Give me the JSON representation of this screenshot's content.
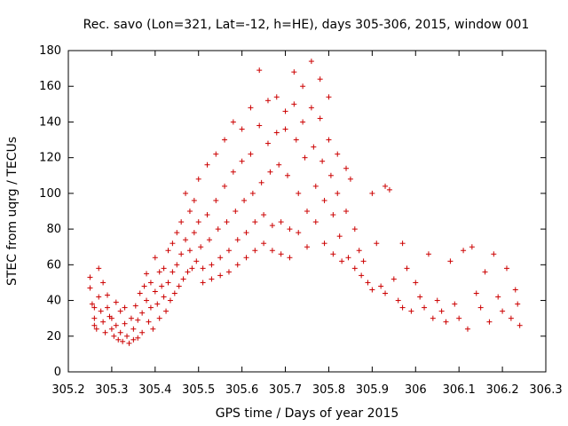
{
  "chart_data": {
    "type": "scatter",
    "title": "Rec. savo (Lon=321, Lat=-12, h=HE), days 305-306, 2015, window 001",
    "xlabel": "GPS time / Days of year 2015",
    "ylabel": "STEC from uqrg / TECUs",
    "xlim": [
      305.2,
      306.3
    ],
    "ylim": [
      0,
      180
    ],
    "xticks": [
      305.2,
      305.3,
      305.4,
      305.5,
      305.6,
      305.7,
      305.8,
      305.9,
      306,
      306.1,
      306.2,
      306.3
    ],
    "xtick_labels": [
      "305.2",
      "305.3",
      "305.4",
      "305.5",
      "305.6",
      "305.7",
      "305.8",
      "305.9",
      "306",
      "306.1",
      "306.2",
      "306.3"
    ],
    "yticks": [
      0,
      20,
      40,
      60,
      80,
      100,
      120,
      140,
      160,
      180
    ],
    "ytick_labels": [
      "0",
      "20",
      "40",
      "60",
      "80",
      "100",
      "120",
      "140",
      "160",
      "180"
    ],
    "grid": false,
    "marker": "+",
    "color": "#cc0000",
    "series": [
      {
        "name": "STEC",
        "points": [
          [
            305.25,
            53
          ],
          [
            305.25,
            47
          ],
          [
            305.255,
            38
          ],
          [
            305.26,
            36
          ],
          [
            305.26,
            30
          ],
          [
            305.26,
            26
          ],
          [
            305.265,
            24
          ],
          [
            305.27,
            58
          ],
          [
            305.27,
            42
          ],
          [
            305.275,
            34
          ],
          [
            305.28,
            50
          ],
          [
            305.28,
            28
          ],
          [
            305.285,
            22
          ],
          [
            305.29,
            43
          ],
          [
            305.29,
            36
          ],
          [
            305.295,
            31
          ],
          [
            305.3,
            30
          ],
          [
            305.3,
            24
          ],
          [
            305.305,
            20
          ],
          [
            305.31,
            39
          ],
          [
            305.31,
            26
          ],
          [
            305.315,
            18
          ],
          [
            305.32,
            34
          ],
          [
            305.32,
            22
          ],
          [
            305.325,
            17
          ],
          [
            305.33,
            36
          ],
          [
            305.33,
            27
          ],
          [
            305.335,
            20
          ],
          [
            305.34,
            16
          ],
          [
            305.345,
            30
          ],
          [
            305.35,
            24
          ],
          [
            305.35,
            18
          ],
          [
            305.355,
            37
          ],
          [
            305.36,
            29
          ],
          [
            305.36,
            19
          ],
          [
            305.365,
            44
          ],
          [
            305.37,
            33
          ],
          [
            305.37,
            22
          ],
          [
            305.375,
            48
          ],
          [
            305.38,
            55
          ],
          [
            305.38,
            40
          ],
          [
            305.385,
            28
          ],
          [
            305.39,
            50
          ],
          [
            305.39,
            36
          ],
          [
            305.395,
            24
          ],
          [
            305.4,
            64
          ],
          [
            305.4,
            45
          ],
          [
            305.405,
            38
          ],
          [
            305.41,
            56
          ],
          [
            305.41,
            30
          ],
          [
            305.415,
            48
          ],
          [
            305.42,
            58
          ],
          [
            305.42,
            42
          ],
          [
            305.425,
            34
          ],
          [
            305.43,
            68
          ],
          [
            305.43,
            50
          ],
          [
            305.435,
            40
          ],
          [
            305.44,
            72
          ],
          [
            305.44,
            56
          ],
          [
            305.445,
            44
          ],
          [
            305.45,
            78
          ],
          [
            305.45,
            60
          ],
          [
            305.455,
            48
          ],
          [
            305.46,
            84
          ],
          [
            305.46,
            66
          ],
          [
            305.465,
            52
          ],
          [
            305.47,
            100
          ],
          [
            305.47,
            74
          ],
          [
            305.475,
            56
          ],
          [
            305.48,
            90
          ],
          [
            305.48,
            68
          ],
          [
            305.485,
            58
          ],
          [
            305.49,
            96
          ],
          [
            305.49,
            78
          ],
          [
            305.495,
            62
          ],
          [
            305.5,
            108
          ],
          [
            305.5,
            84
          ],
          [
            305.505,
            70
          ],
          [
            305.51,
            58
          ],
          [
            305.51,
            50
          ],
          [
            305.52,
            116
          ],
          [
            305.52,
            88
          ],
          [
            305.525,
            74
          ],
          [
            305.53,
            60
          ],
          [
            305.53,
            52
          ],
          [
            305.54,
            122
          ],
          [
            305.54,
            96
          ],
          [
            305.545,
            80
          ],
          [
            305.55,
            64
          ],
          [
            305.55,
            54
          ],
          [
            305.56,
            130
          ],
          [
            305.56,
            104
          ],
          [
            305.565,
            84
          ],
          [
            305.57,
            68
          ],
          [
            305.57,
            56
          ],
          [
            305.58,
            140
          ],
          [
            305.58,
            112
          ],
          [
            305.585,
            90
          ],
          [
            305.59,
            74
          ],
          [
            305.59,
            60
          ],
          [
            305.6,
            136
          ],
          [
            305.6,
            118
          ],
          [
            305.605,
            96
          ],
          [
            305.61,
            78
          ],
          [
            305.61,
            64
          ],
          [
            305.62,
            148
          ],
          [
            305.62,
            122
          ],
          [
            305.625,
            100
          ],
          [
            305.63,
            84
          ],
          [
            305.63,
            68
          ],
          [
            305.64,
            169
          ],
          [
            305.64,
            138
          ],
          [
            305.645,
            106
          ],
          [
            305.65,
            88
          ],
          [
            305.65,
            72
          ],
          [
            305.66,
            152
          ],
          [
            305.66,
            128
          ],
          [
            305.665,
            112
          ],
          [
            305.67,
            82
          ],
          [
            305.67,
            68
          ],
          [
            305.68,
            154
          ],
          [
            305.68,
            134
          ],
          [
            305.685,
            116
          ],
          [
            305.69,
            84
          ],
          [
            305.69,
            66
          ],
          [
            305.7,
            146
          ],
          [
            305.7,
            136
          ],
          [
            305.705,
            110
          ],
          [
            305.71,
            80
          ],
          [
            305.71,
            64
          ],
          [
            305.72,
            168
          ],
          [
            305.72,
            150
          ],
          [
            305.725,
            130
          ],
          [
            305.73,
            100
          ],
          [
            305.73,
            78
          ],
          [
            305.74,
            160
          ],
          [
            305.74,
            140
          ],
          [
            305.745,
            120
          ],
          [
            305.75,
            90
          ],
          [
            305.75,
            70
          ],
          [
            305.76,
            174
          ],
          [
            305.76,
            148
          ],
          [
            305.765,
            126
          ],
          [
            305.77,
            104
          ],
          [
            305.77,
            84
          ],
          [
            305.78,
            164
          ],
          [
            305.78,
            142
          ],
          [
            305.785,
            118
          ],
          [
            305.79,
            96
          ],
          [
            305.79,
            72
          ],
          [
            305.8,
            154
          ],
          [
            305.8,
            130
          ],
          [
            305.805,
            110
          ],
          [
            305.81,
            88
          ],
          [
            305.81,
            66
          ],
          [
            305.82,
            122
          ],
          [
            305.82,
            100
          ],
          [
            305.825,
            76
          ],
          [
            305.83,
            62
          ],
          [
            305.84,
            114
          ],
          [
            305.84,
            90
          ],
          [
            305.845,
            64
          ],
          [
            305.85,
            108
          ],
          [
            305.86,
            80
          ],
          [
            305.86,
            58
          ],
          [
            305.87,
            68
          ],
          [
            305.875,
            54
          ],
          [
            305.88,
            62
          ],
          [
            305.89,
            50
          ],
          [
            305.9,
            100
          ],
          [
            305.9,
            46
          ],
          [
            305.91,
            72
          ],
          [
            305.92,
            48
          ],
          [
            305.93,
            104
          ],
          [
            305.93,
            44
          ],
          [
            305.94,
            102
          ],
          [
            305.95,
            52
          ],
          [
            305.96,
            40
          ],
          [
            305.97,
            72
          ],
          [
            305.97,
            36
          ],
          [
            305.98,
            58
          ],
          [
            305.99,
            34
          ],
          [
            306.0,
            50
          ],
          [
            306.01,
            42
          ],
          [
            306.02,
            36
          ],
          [
            306.03,
            66
          ],
          [
            306.04,
            30
          ],
          [
            306.05,
            40
          ],
          [
            306.06,
            34
          ],
          [
            306.07,
            28
          ],
          [
            306.08,
            62
          ],
          [
            306.09,
            38
          ],
          [
            306.1,
            30
          ],
          [
            306.11,
            68
          ],
          [
            306.12,
            24
          ],
          [
            306.13,
            70
          ],
          [
            306.14,
            44
          ],
          [
            306.15,
            36
          ],
          [
            306.16,
            56
          ],
          [
            306.17,
            28
          ],
          [
            306.18,
            66
          ],
          [
            306.19,
            42
          ],
          [
            306.2,
            34
          ],
          [
            306.21,
            58
          ],
          [
            306.22,
            30
          ],
          [
            306.23,
            46
          ],
          [
            306.235,
            38
          ],
          [
            306.24,
            26
          ]
        ]
      }
    ]
  }
}
